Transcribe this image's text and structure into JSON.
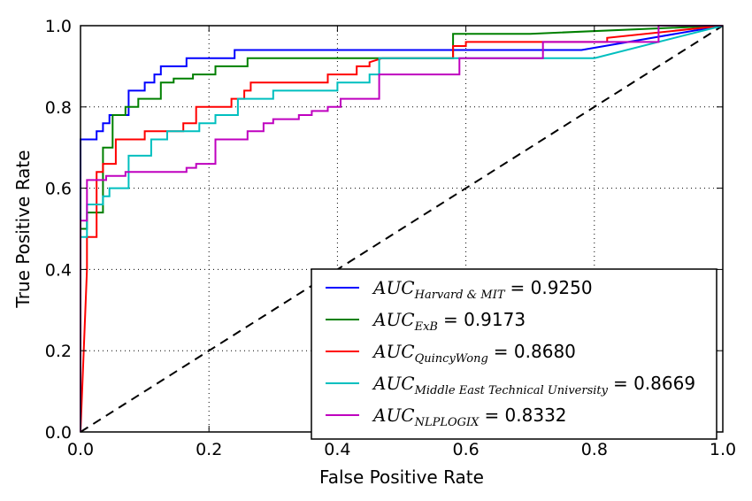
{
  "chart_data": {
    "type": "line",
    "title": "",
    "xlabel": "False Positive Rate",
    "ylabel": "True Positive Rate",
    "xlim": [
      0.0,
      1.0
    ],
    "ylim": [
      0.0,
      1.0
    ],
    "xticks": [
      "0.0",
      "0.2",
      "0.4",
      "0.6",
      "0.8",
      "1.0"
    ],
    "yticks": [
      "0.0",
      "0.2",
      "0.4",
      "0.6",
      "0.8",
      "1.0"
    ],
    "grid": true,
    "legend_position": "lower-right",
    "reference_line": {
      "style": "dashed",
      "color": "#000000",
      "x": [
        0,
        1
      ],
      "y": [
        0,
        1
      ]
    },
    "series": [
      {
        "name": "AUC",
        "subscript": "Harvard & MIT",
        "value_text": "= 0.9250",
        "color": "#0000ff",
        "x": [
          0.0,
          0.0,
          0.025,
          0.025,
          0.035,
          0.035,
          0.045,
          0.045,
          0.075,
          0.075,
          0.1,
          0.1,
          0.115,
          0.115,
          0.125,
          0.125,
          0.165,
          0.165,
          0.24,
          0.24,
          0.78,
          1.0
        ],
        "y": [
          0.0,
          0.72,
          0.72,
          0.74,
          0.74,
          0.76,
          0.76,
          0.78,
          0.78,
          0.84,
          0.84,
          0.86,
          0.86,
          0.88,
          0.88,
          0.9,
          0.9,
          0.92,
          0.92,
          0.94,
          0.94,
          1.0
        ]
      },
      {
        "name": "AUC",
        "subscript": "ExB",
        "value_text": "= 0.9173",
        "color": "#008000",
        "x": [
          0.0,
          0.0,
          0.01,
          0.01,
          0.035,
          0.035,
          0.05,
          0.05,
          0.07,
          0.07,
          0.09,
          0.09,
          0.125,
          0.125,
          0.145,
          0.145,
          0.175,
          0.175,
          0.21,
          0.21,
          0.26,
          0.26,
          0.58,
          0.58,
          0.7,
          1.0
        ],
        "y": [
          0.0,
          0.5,
          0.5,
          0.54,
          0.54,
          0.7,
          0.7,
          0.78,
          0.78,
          0.8,
          0.8,
          0.82,
          0.82,
          0.86,
          0.86,
          0.87,
          0.87,
          0.88,
          0.88,
          0.9,
          0.9,
          0.92,
          0.92,
          0.98,
          0.98,
          1.0
        ]
      },
      {
        "name": "AUC",
        "subscript": "QuincyWong",
        "value_text": "= 0.8680",
        "color": "#ff0000",
        "x": [
          0.0,
          0.01,
          0.01,
          0.025,
          0.025,
          0.035,
          0.035,
          0.055,
          0.055,
          0.1,
          0.1,
          0.16,
          0.16,
          0.18,
          0.18,
          0.235,
          0.235,
          0.255,
          0.255,
          0.265,
          0.265,
          0.355,
          0.355,
          0.385,
          0.385,
          0.4,
          0.4,
          0.43,
          0.43,
          0.45,
          0.45,
          0.47,
          0.58,
          0.58,
          0.6,
          0.6,
          0.82,
          0.82,
          1.0
        ],
        "y": [
          0.0,
          0.4,
          0.48,
          0.48,
          0.64,
          0.64,
          0.66,
          0.66,
          0.72,
          0.72,
          0.74,
          0.74,
          0.76,
          0.76,
          0.8,
          0.8,
          0.82,
          0.82,
          0.84,
          0.84,
          0.86,
          0.86,
          0.86,
          0.86,
          0.88,
          0.88,
          0.88,
          0.88,
          0.9,
          0.9,
          0.91,
          0.92,
          0.92,
          0.95,
          0.95,
          0.96,
          0.96,
          0.97,
          1.0
        ]
      },
      {
        "name": "AUC",
        "subscript": "Middle East Technical University",
        "value_text": "= 0.8669",
        "color": "#00bfbf",
        "x": [
          0.0,
          0.0,
          0.01,
          0.01,
          0.035,
          0.035,
          0.045,
          0.045,
          0.075,
          0.075,
          0.11,
          0.11,
          0.135,
          0.135,
          0.185,
          0.185,
          0.21,
          0.21,
          0.245,
          0.245,
          0.3,
          0.3,
          0.4,
          0.4,
          0.45,
          0.45,
          0.465,
          0.465,
          0.8,
          1.0
        ],
        "y": [
          0.0,
          0.48,
          0.48,
          0.56,
          0.56,
          0.58,
          0.58,
          0.6,
          0.6,
          0.68,
          0.68,
          0.72,
          0.72,
          0.74,
          0.74,
          0.76,
          0.76,
          0.78,
          0.78,
          0.82,
          0.82,
          0.84,
          0.84,
          0.86,
          0.86,
          0.88,
          0.88,
          0.92,
          0.92,
          1.0
        ]
      },
      {
        "name": "AUC",
        "subscript": "NLPLOGIX",
        "value_text": "= 0.8332",
        "color": "#bf00bf",
        "x": [
          0.0,
          0.0,
          0.01,
          0.01,
          0.04,
          0.04,
          0.07,
          0.07,
          0.165,
          0.165,
          0.18,
          0.18,
          0.21,
          0.21,
          0.26,
          0.26,
          0.285,
          0.285,
          0.3,
          0.3,
          0.34,
          0.34,
          0.36,
          0.36,
          0.385,
          0.385,
          0.405,
          0.405,
          0.465,
          0.465,
          0.59,
          0.59,
          0.72,
          0.72,
          0.9,
          0.9,
          1.0
        ],
        "y": [
          0.0,
          0.52,
          0.52,
          0.62,
          0.62,
          0.63,
          0.63,
          0.64,
          0.64,
          0.65,
          0.65,
          0.66,
          0.66,
          0.72,
          0.72,
          0.74,
          0.74,
          0.76,
          0.76,
          0.77,
          0.77,
          0.78,
          0.78,
          0.79,
          0.79,
          0.8,
          0.8,
          0.82,
          0.82,
          0.88,
          0.88,
          0.92,
          0.92,
          0.96,
          0.96,
          1.0,
          1.0
        ]
      }
    ]
  }
}
